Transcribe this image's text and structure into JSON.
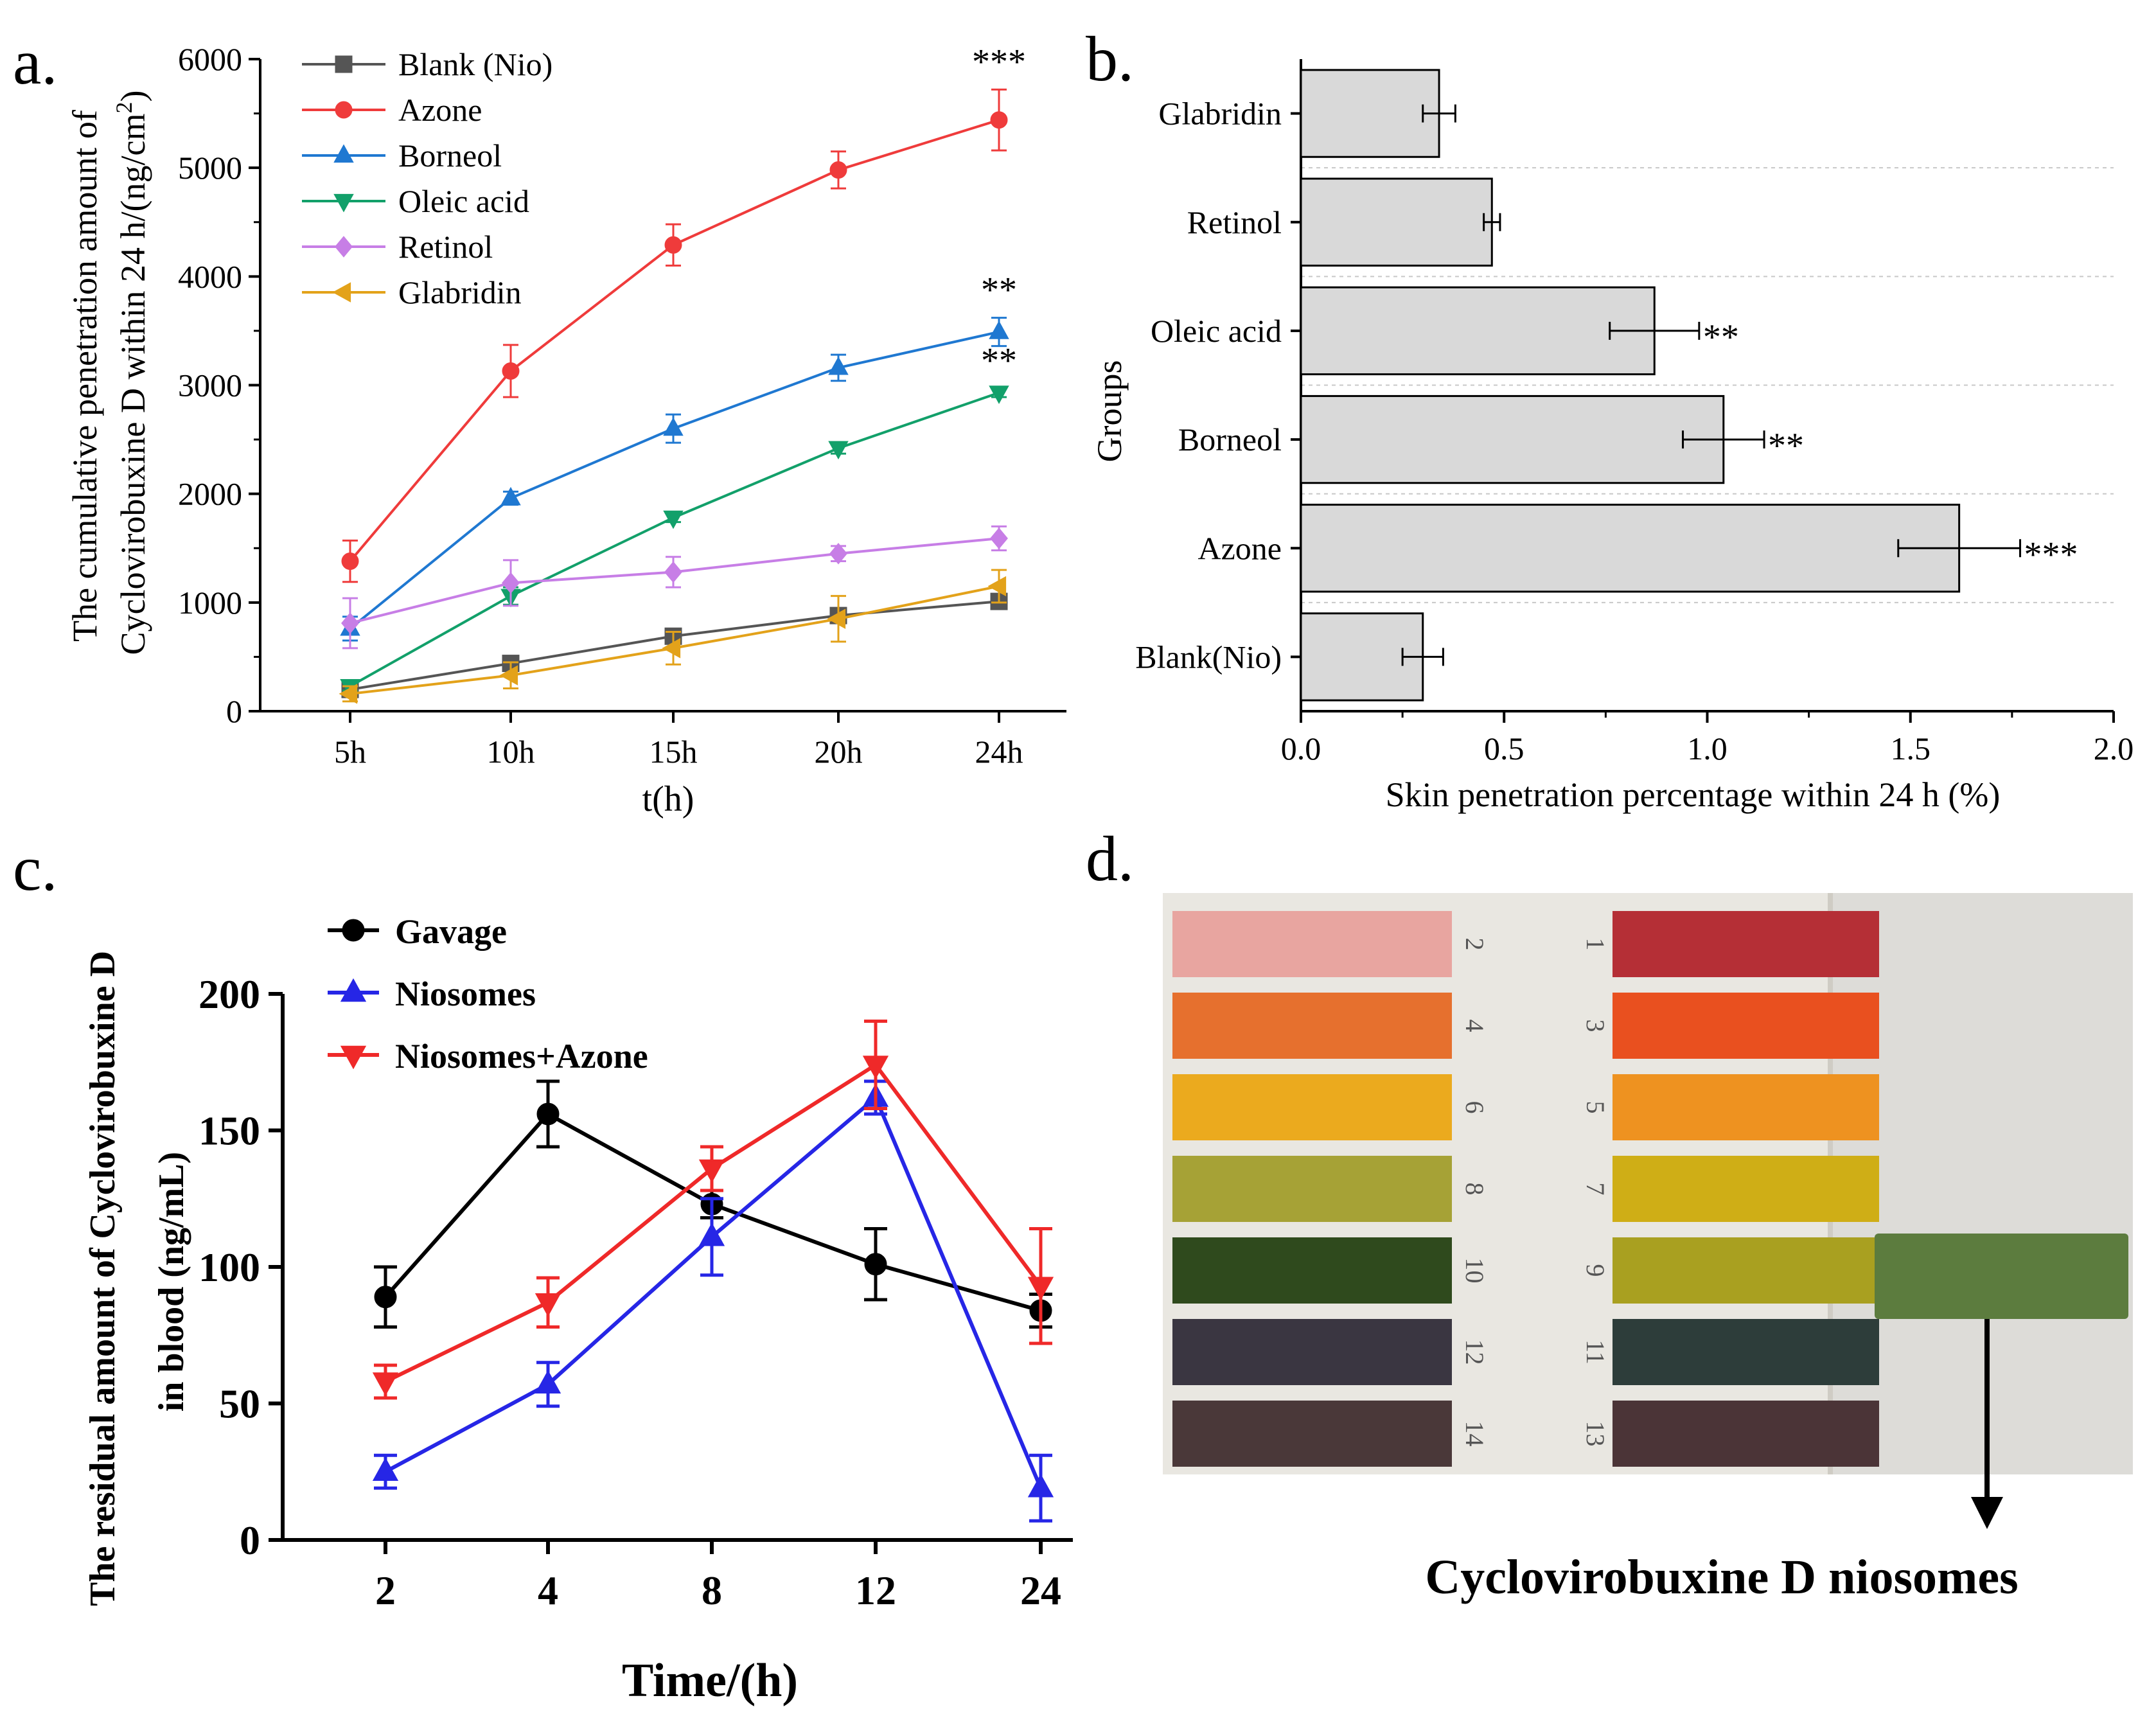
{
  "panel_labels": {
    "a": "a.",
    "b": "b.",
    "c": "c.",
    "d": "d."
  },
  "chart_data": [
    {
      "id": "a",
      "type": "line",
      "title": "",
      "xlabel": "t(h)",
      "ylabel_line1": "The cumulative penetration amount of",
      "ylabel_line2": "Cyclovirobuxine D within 24 h/(ng/cm",
      "ylabel_sup": "2",
      "ylabel_close": ")",
      "categories": [
        "5h",
        "10h",
        "15h",
        "20h",
        "24h"
      ],
      "ylim": [
        0,
        6000
      ],
      "yticks": [
        "0",
        "1000",
        "2000",
        "3000",
        "4000",
        "5000",
        "6000"
      ],
      "series": [
        {
          "name": "Blank (Nio)",
          "color": "#555555",
          "marker": "square",
          "values": [
            200,
            440,
            690,
            880,
            1010
          ],
          "errors": [
            40,
            50,
            60,
            60,
            50
          ]
        },
        {
          "name": "Azone",
          "color": "#ef3b3b",
          "marker": "circle",
          "values": [
            1380,
            3130,
            4290,
            4980,
            5440
          ],
          "errors": [
            190,
            240,
            190,
            170,
            280
          ]
        },
        {
          "name": "Borneol",
          "color": "#1f78d1",
          "marker": "triangle-up",
          "values": [
            760,
            1960,
            2600,
            3160,
            3490
          ],
          "errors": [
            110,
            60,
            130,
            120,
            130
          ]
        },
        {
          "name": "Oleic acid",
          "color": "#12a06a",
          "marker": "triangle-down",
          "values": [
            230,
            1060,
            1780,
            2420,
            2930
          ],
          "errors": [
            40,
            80,
            40,
            50,
            40
          ]
        },
        {
          "name": "Retinol",
          "color": "#c77ee6",
          "marker": "diamond",
          "values": [
            810,
            1180,
            1280,
            1450,
            1590
          ],
          "errors": [
            230,
            210,
            140,
            70,
            110
          ]
        },
        {
          "name": "Glabridin",
          "color": "#e3a21a",
          "marker": "triangle-left",
          "values": [
            160,
            330,
            580,
            850,
            1150
          ],
          "errors": [
            70,
            120,
            150,
            210,
            150
          ]
        }
      ],
      "annotations": [
        {
          "series": "Azone",
          "category": "24h",
          "text": "***"
        },
        {
          "series": "Borneol",
          "category": "24h",
          "text": "**"
        },
        {
          "series": "Oleic acid",
          "category": "24h",
          "text": "**"
        }
      ],
      "legend_position": "top-left"
    },
    {
      "id": "b",
      "type": "bar",
      "orientation": "horizontal",
      "xlabel": "Skin penetration percentage within 24 h (%)",
      "ylabel": "Groups",
      "categories": [
        "Glabridin",
        "Retinol",
        "Oleic acid",
        "Borneol",
        "Azone",
        "Blank(Nio)"
      ],
      "values": [
        0.34,
        0.47,
        0.87,
        1.04,
        1.62,
        0.3
      ],
      "errors": [
        0.04,
        0.02,
        0.11,
        0.1,
        0.15,
        0.05
      ],
      "significance": [
        "",
        "",
        "**",
        "**",
        "***",
        ""
      ],
      "xlim": [
        0,
        2.0
      ],
      "xticks": [
        "0.0",
        "0.5",
        "1.0",
        "1.5",
        "2.0"
      ],
      "bar_color": "#d9d9d9",
      "grid": "horizontal dashed"
    },
    {
      "id": "c",
      "type": "line",
      "xlabel": "Time/(h)",
      "ylabel_line1": "The residual amount of Cyclovirobuxine D",
      "ylabel_line2": "in blood (ng/mL)",
      "categories": [
        "2",
        "4",
        "8",
        "12",
        "24"
      ],
      "ylim": [
        0,
        200
      ],
      "yticks": [
        "0",
        "50",
        "100",
        "150",
        "200"
      ],
      "series": [
        {
          "name": "Gavage",
          "color": "#000000",
          "marker": "circle",
          "values": [
            89,
            156,
            123,
            101,
            84
          ],
          "errors": [
            11,
            12,
            5,
            13,
            6
          ]
        },
        {
          "name": "Niosomes",
          "color": "#2626e6",
          "marker": "triangle-up",
          "values": [
            25,
            57,
            111,
            162,
            19
          ],
          "errors": [
            6,
            8,
            14,
            6,
            12
          ]
        },
        {
          "name": "Niosomes+Azone",
          "color": "#ef2929",
          "marker": "triangle-down",
          "values": [
            58,
            87,
            136,
            174,
            93
          ],
          "errors": [
            6,
            9,
            8,
            16,
            21
          ]
        }
      ],
      "legend_position": "top-left"
    }
  ],
  "panel_d": {
    "strips_left": [
      {
        "label": "2",
        "color": "#e8a5a0"
      },
      {
        "label": "4",
        "color": "#e6702e"
      },
      {
        "label": "6",
        "color": "#ebaa1e"
      },
      {
        "label": "8",
        "color": "#a6a236"
      },
      {
        "label": "10",
        "color": "#2f4a1d"
      },
      {
        "label": "12",
        "color": "#3a3641"
      },
      {
        "label": "14",
        "color": "#4a3839"
      }
    ],
    "strips_right": [
      {
        "label": "1",
        "color": "#b52f36"
      },
      {
        "label": "3",
        "color": "#e9501f"
      },
      {
        "label": "5",
        "color": "#ee9220"
      },
      {
        "label": "7",
        "color": "#cfae16"
      },
      {
        "label": "9",
        "color": "#a9a020"
      },
      {
        "label": "11",
        "color": "#2d3d3a"
      },
      {
        "label": "13",
        "color": "#4b3437"
      }
    ],
    "sample_color": "#5c7c3e",
    "caption": "Cyclovirobuxine D niosomes"
  }
}
